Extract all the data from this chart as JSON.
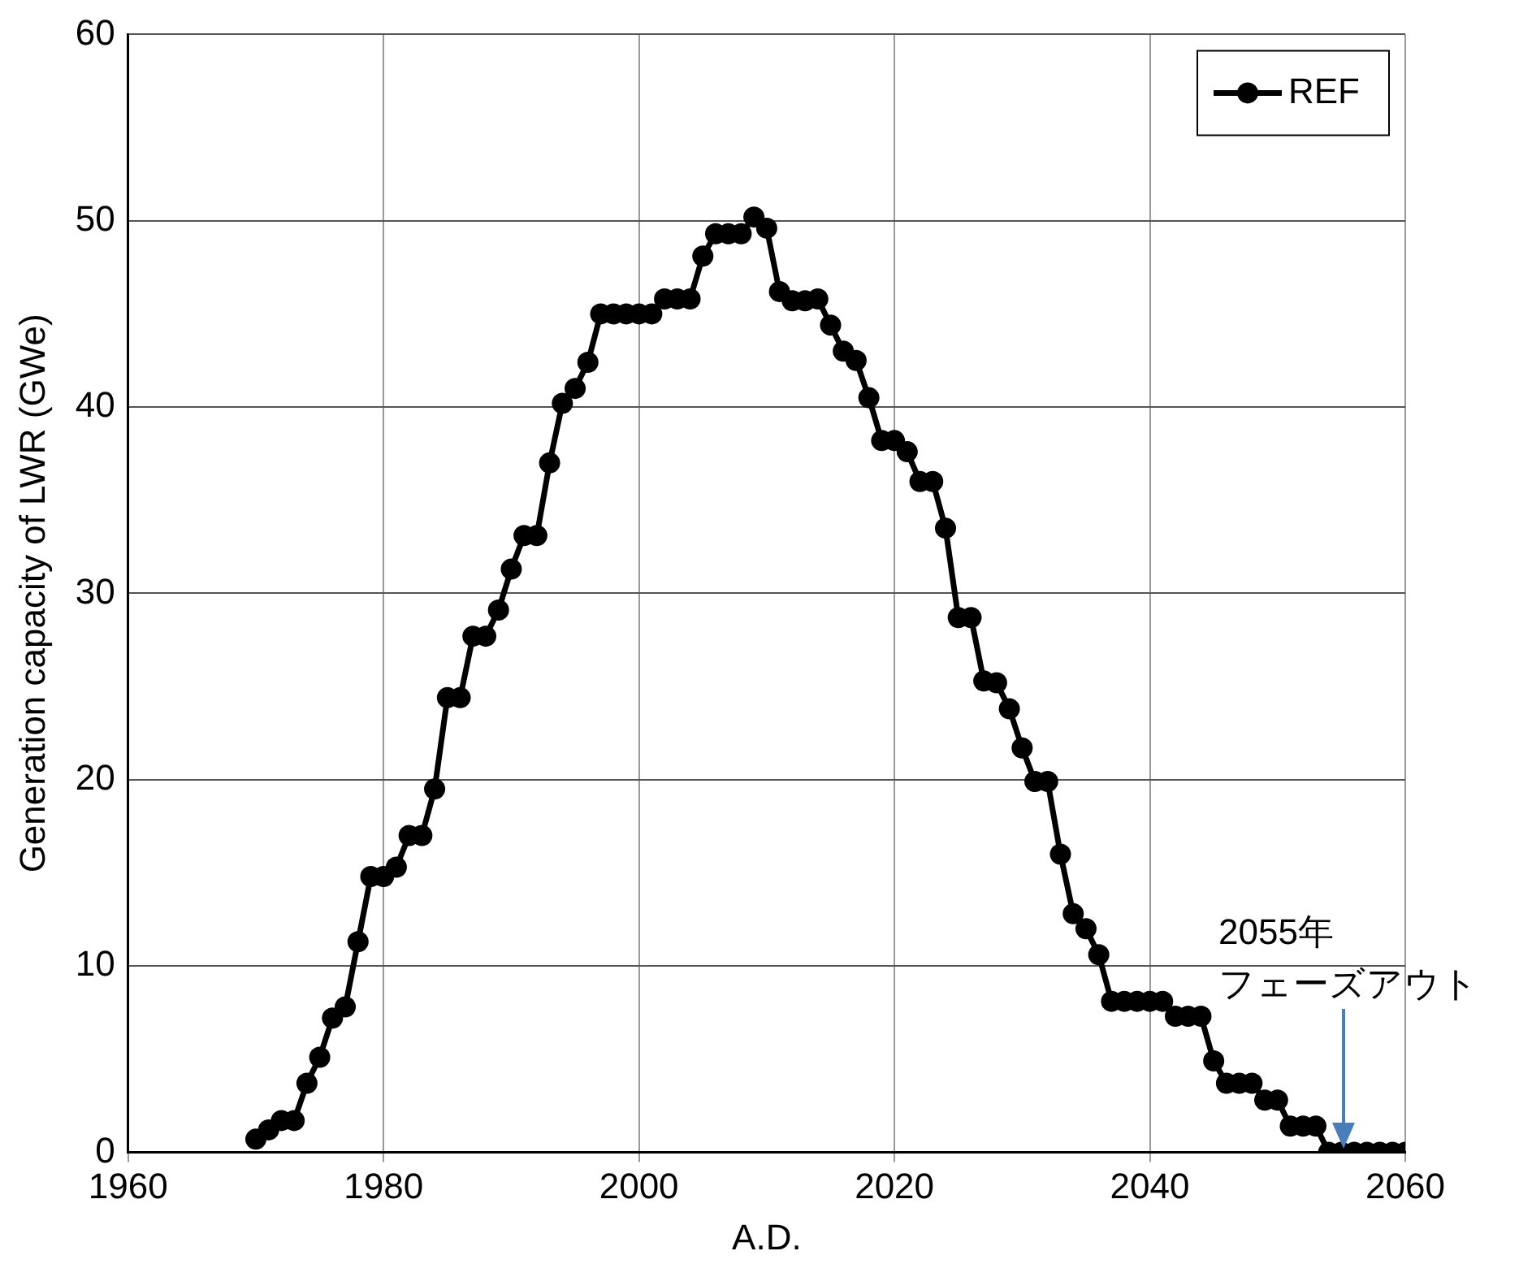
{
  "chart_data": {
    "type": "line",
    "xlabel": "A.D.",
    "ylabel": "Generation capacity of LWR (GWe)",
    "x": [
      1970,
      1971,
      1972,
      1973,
      1974,
      1975,
      1976,
      1977,
      1978,
      1979,
      1980,
      1981,
      1982,
      1983,
      1984,
      1985,
      1986,
      1987,
      1988,
      1989,
      1990,
      1991,
      1992,
      1993,
      1994,
      1995,
      1996,
      1997,
      1998,
      1999,
      2000,
      2001,
      2002,
      2003,
      2004,
      2005,
      2006,
      2007,
      2008,
      2009,
      2010,
      2011,
      2012,
      2013,
      2014,
      2015,
      2016,
      2017,
      2018,
      2019,
      2020,
      2021,
      2022,
      2023,
      2024,
      2025,
      2026,
      2027,
      2028,
      2029,
      2030,
      2031,
      2032,
      2033,
      2034,
      2035,
      2036,
      2037,
      2038,
      2039,
      2040,
      2041,
      2042,
      2043,
      2044,
      2045,
      2046,
      2047,
      2048,
      2049,
      2050,
      2051,
      2052,
      2053,
      2054,
      2055,
      2056,
      2057,
      2058,
      2059,
      2060
    ],
    "series": [
      {
        "name": "REF",
        "color": "#000000",
        "values": [
          0.7,
          1.2,
          1.7,
          1.7,
          3.7,
          5.1,
          7.2,
          7.8,
          11.3,
          14.8,
          14.8,
          15.3,
          17.0,
          17.0,
          19.5,
          24.4,
          24.4,
          27.7,
          27.7,
          29.1,
          31.3,
          33.1,
          33.1,
          37.0,
          40.2,
          41.0,
          42.4,
          45.0,
          45.0,
          45.0,
          45.0,
          45.0,
          45.8,
          45.8,
          45.8,
          48.1,
          49.3,
          49.3,
          49.3,
          50.2,
          49.6,
          46.2,
          45.7,
          45.7,
          45.8,
          44.4,
          43.0,
          42.5,
          40.5,
          38.2,
          38.2,
          37.6,
          36.0,
          36.0,
          33.5,
          28.7,
          28.7,
          25.3,
          25.2,
          23.8,
          21.7,
          19.9,
          19.9,
          16.0,
          12.8,
          12.0,
          10.6,
          8.1,
          8.1,
          8.1,
          8.1,
          8.1,
          7.3,
          7.3,
          7.3,
          4.9,
          3.7,
          3.7,
          3.7,
          2.8,
          2.8,
          1.4,
          1.4,
          1.4,
          0,
          0,
          0,
          0,
          0,
          0,
          0
        ]
      }
    ],
    "xlim": [
      1960,
      2060
    ],
    "xticks": [
      1960,
      1980,
      2000,
      2020,
      2040,
      2060
    ],
    "ylim": [
      0,
      60
    ],
    "yticks": [
      0,
      10,
      20,
      30,
      40,
      50,
      60
    ],
    "grid": true,
    "legend": "top right",
    "marker": "circle",
    "line_style": "solid",
    "annotations": [
      "2055年",
      "フェーズアウト"
    ]
  }
}
